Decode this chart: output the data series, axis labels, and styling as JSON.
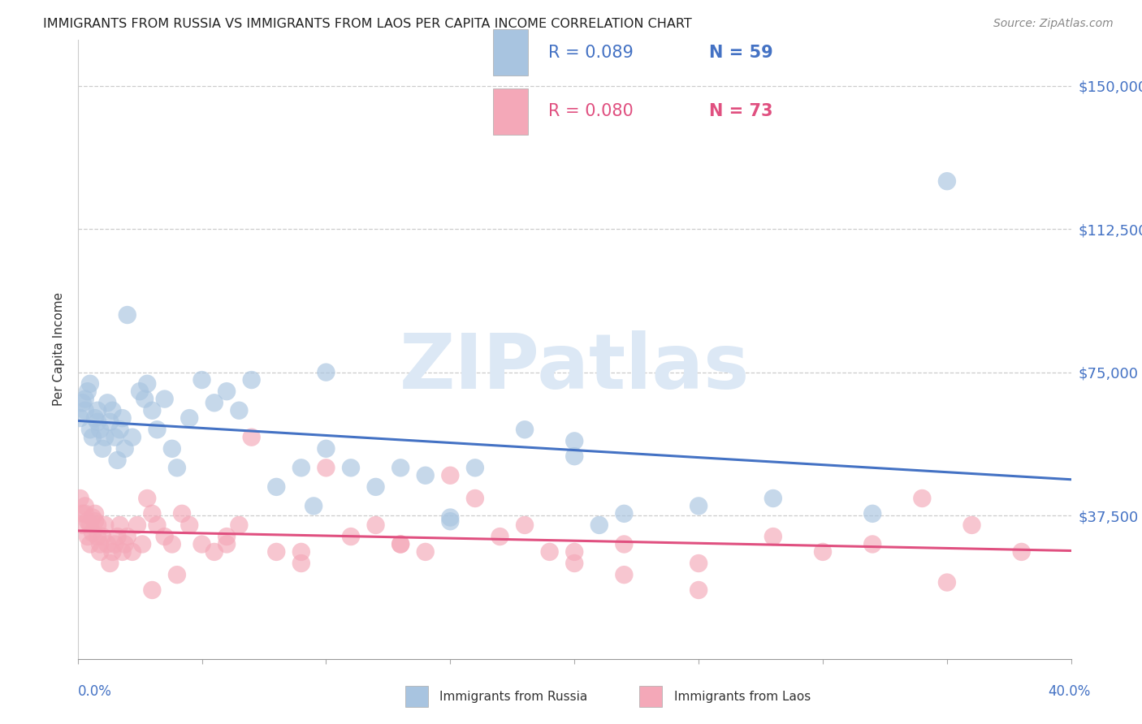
{
  "title": "IMMIGRANTS FROM RUSSIA VS IMMIGRANTS FROM LAOS PER CAPITA INCOME CORRELATION CHART",
  "source": "Source: ZipAtlas.com",
  "ylabel": "Per Capita Income",
  "russia_R": 0.089,
  "russia_N": 59,
  "laos_R": 0.08,
  "laos_N": 73,
  "russia_color": "#a8c4e0",
  "laos_color": "#f4a8b8",
  "russia_line_color": "#4472c4",
  "laos_line_color": "#e05080",
  "watermark_color": "#dce8f5",
  "watermark": "ZIPatlas",
  "yticks": [
    0,
    37500,
    75000,
    112500,
    150000
  ],
  "ytick_labels": [
    "",
    "$37,500",
    "$75,000",
    "$112,500",
    "$150,000"
  ],
  "xlim": [
    0.0,
    0.4
  ],
  "ylim": [
    0,
    162000
  ],
  "russia_x": [
    0.001,
    0.002,
    0.003,
    0.003,
    0.004,
    0.005,
    0.005,
    0.006,
    0.007,
    0.008,
    0.008,
    0.009,
    0.01,
    0.011,
    0.012,
    0.013,
    0.014,
    0.015,
    0.016,
    0.017,
    0.018,
    0.019,
    0.02,
    0.022,
    0.025,
    0.027,
    0.028,
    0.03,
    0.032,
    0.035,
    0.038,
    0.04,
    0.045,
    0.05,
    0.055,
    0.06,
    0.065,
    0.07,
    0.08,
    0.09,
    0.095,
    0.1,
    0.11,
    0.12,
    0.13,
    0.14,
    0.15,
    0.16,
    0.18,
    0.2,
    0.21,
    0.22,
    0.25,
    0.28,
    0.32,
    0.35,
    0.1,
    0.15,
    0.2
  ],
  "russia_y": [
    63000,
    67000,
    65000,
    68000,
    70000,
    60000,
    72000,
    58000,
    63000,
    62000,
    65000,
    60000,
    55000,
    58000,
    67000,
    62000,
    65000,
    58000,
    52000,
    60000,
    63000,
    55000,
    90000,
    58000,
    70000,
    68000,
    72000,
    65000,
    60000,
    68000,
    55000,
    50000,
    63000,
    73000,
    67000,
    70000,
    65000,
    73000,
    45000,
    50000,
    40000,
    75000,
    50000,
    45000,
    50000,
    48000,
    36000,
    50000,
    60000,
    57000,
    35000,
    38000,
    40000,
    42000,
    38000,
    125000,
    55000,
    37000,
    53000
  ],
  "laos_x": [
    0.001,
    0.002,
    0.002,
    0.003,
    0.003,
    0.004,
    0.004,
    0.005,
    0.005,
    0.006,
    0.006,
    0.007,
    0.007,
    0.008,
    0.008,
    0.009,
    0.009,
    0.01,
    0.011,
    0.012,
    0.013,
    0.014,
    0.015,
    0.016,
    0.017,
    0.018,
    0.019,
    0.02,
    0.022,
    0.024,
    0.026,
    0.028,
    0.03,
    0.032,
    0.035,
    0.038,
    0.042,
    0.045,
    0.05,
    0.055,
    0.06,
    0.065,
    0.07,
    0.08,
    0.09,
    0.1,
    0.11,
    0.12,
    0.13,
    0.14,
    0.16,
    0.18,
    0.2,
    0.22,
    0.25,
    0.28,
    0.3,
    0.32,
    0.34,
    0.36,
    0.38,
    0.35,
    0.22,
    0.15,
    0.17,
    0.19,
    0.25,
    0.13,
    0.09,
    0.2,
    0.06,
    0.04,
    0.03
  ],
  "laos_y": [
    42000,
    38000,
    35000,
    40000,
    38000,
    36000,
    32000,
    35000,
    30000,
    37000,
    33000,
    36000,
    38000,
    32000,
    35000,
    30000,
    28000,
    32000,
    35000,
    30000,
    25000,
    28000,
    30000,
    32000,
    35000,
    28000,
    30000,
    32000,
    28000,
    35000,
    30000,
    42000,
    38000,
    35000,
    32000,
    30000,
    38000,
    35000,
    30000,
    28000,
    32000,
    35000,
    58000,
    28000,
    25000,
    50000,
    32000,
    35000,
    30000,
    28000,
    42000,
    35000,
    28000,
    30000,
    18000,
    32000,
    28000,
    30000,
    42000,
    35000,
    28000,
    20000,
    22000,
    48000,
    32000,
    28000,
    25000,
    30000,
    28000,
    25000,
    30000,
    22000,
    18000
  ]
}
